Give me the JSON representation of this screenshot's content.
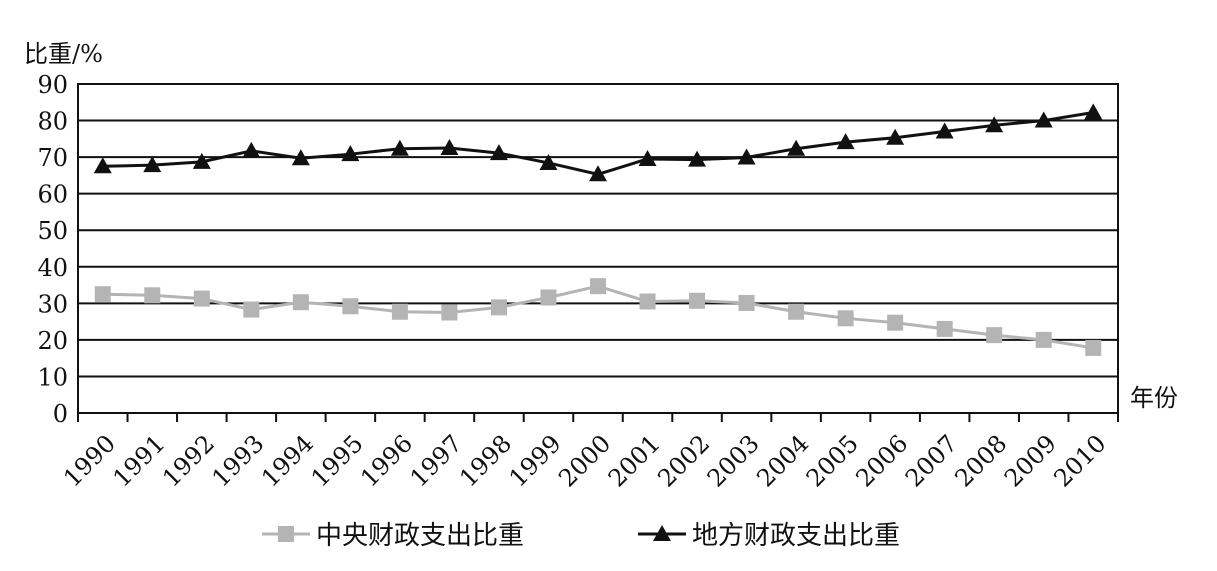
{
  "chart_data": {
    "type": "line",
    "title": "",
    "ylabel": "比重/%",
    "xlabel": "年份",
    "ylim": [
      0,
      90
    ],
    "yticks": [
      0,
      10,
      20,
      30,
      40,
      50,
      60,
      70,
      80,
      90
    ],
    "grid": "horizontal",
    "legend_position": "bottom",
    "categories": [
      "1990",
      "1991",
      "1992",
      "1993",
      "1994",
      "1995",
      "1996",
      "1997",
      "1998",
      "1999",
      "2000",
      "2001",
      "2002",
      "2003",
      "2004",
      "2005",
      "2006",
      "2007",
      "2008",
      "2009",
      "2010"
    ],
    "series": [
      {
        "name": "中央财政支出比重",
        "marker": "square",
        "color": "#b4b4b4",
        "values": [
          32.5,
          32.2,
          31.3,
          28.3,
          30.3,
          29.2,
          27.7,
          27.5,
          28.9,
          31.6,
          34.7,
          30.5,
          30.7,
          30.1,
          27.7,
          25.9,
          24.7,
          23.0,
          21.3,
          20.0,
          17.8
        ]
      },
      {
        "name": "地方财政支出比重",
        "marker": "triangle",
        "color": "#111111",
        "values": [
          67.5,
          67.8,
          68.7,
          71.7,
          69.7,
          70.8,
          72.3,
          72.5,
          71.1,
          68.4,
          65.3,
          69.5,
          69.3,
          69.9,
          72.3,
          74.1,
          75.3,
          77.0,
          78.7,
          80.0,
          82.2
        ]
      }
    ]
  }
}
